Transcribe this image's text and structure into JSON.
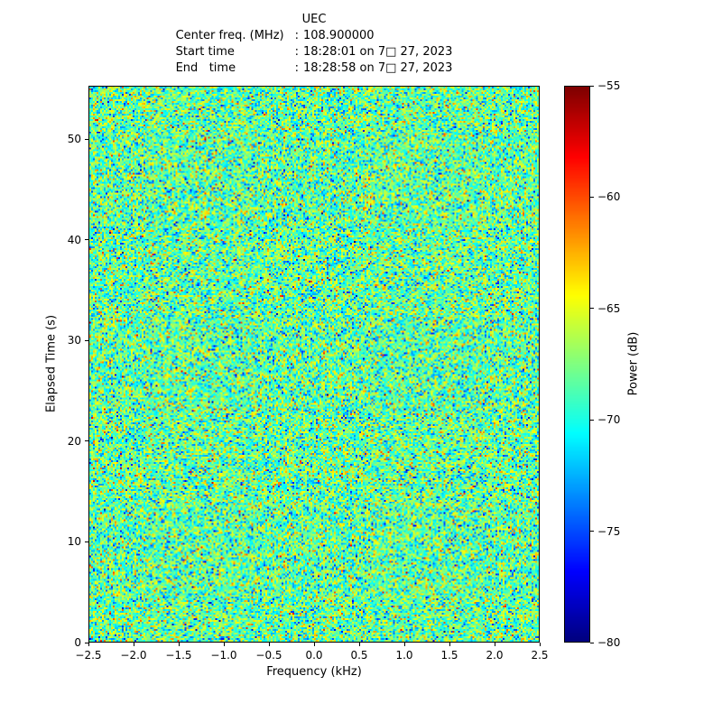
{
  "figure": {
    "title": "UEC",
    "separator": ":",
    "subtitle_lines": [
      {
        "label": "Center freq. (MHz)",
        "value": "108.900000"
      },
      {
        "label": "Start time",
        "value": "18:28:01 on 7□ 27, 2023"
      },
      {
        "label": "End   time",
        "value": "18:28:58 on 7□ 27, 2023"
      }
    ]
  },
  "chart_data": {
    "type": "heatmap",
    "title": "UEC",
    "xlabel": "Frequency (kHz)",
    "ylabel": "Elapsed Time (s)",
    "colorbar_label": "Power (dB)",
    "center_freq_mhz": "108.900000",
    "start_time": "18:28:01 on 7□ 27, 2023",
    "end_time": "18:28:58 on 7□ 27, 2023",
    "x_range": [
      -2.5,
      2.5
    ],
    "y_range": [
      0,
      55.3
    ],
    "color_range_db": [
      -80,
      -55
    ],
    "colormap": "jet",
    "grid": false,
    "legend": "none",
    "x_ticks": [
      -2.5,
      -2.0,
      -1.5,
      -1.0,
      -0.5,
      0.0,
      0.5,
      1.0,
      1.5,
      2.0,
      2.5
    ],
    "x_tick_labels": [
      "−2.5",
      "−2.0",
      "−1.5",
      "−1.0",
      "−0.5",
      "0.0",
      "0.5",
      "1.0",
      "1.5",
      "2.0",
      "2.5"
    ],
    "y_ticks": [
      0,
      10,
      20,
      30,
      40,
      50
    ],
    "y_tick_labels": [
      "0",
      "10",
      "20",
      "30",
      "40",
      "50"
    ],
    "colorbar_ticks": [
      -55,
      -60,
      -65,
      -70,
      -75,
      -80
    ],
    "colorbar_tick_labels": [
      "−55",
      "−60",
      "−65",
      "−70",
      "−75",
      "−80"
    ],
    "noise": {
      "description": "broadband noise floor, no visible signal",
      "mean_db": -68.3,
      "std_db": 3.1,
      "seed": 42,
      "cols": 250,
      "rows": 309
    },
    "colormap_stops": [
      "#00007f",
      "#0000ff",
      "#00ffff",
      "#7fff7f",
      "#ffff00",
      "#ff0000",
      "#7f0000"
    ]
  }
}
